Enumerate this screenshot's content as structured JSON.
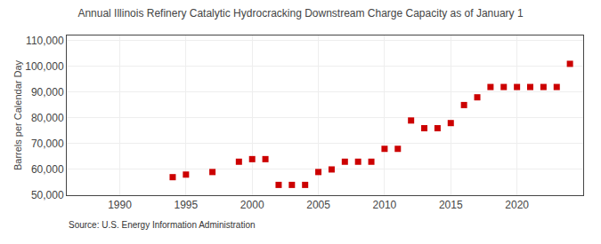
{
  "chart_data": {
    "type": "scatter",
    "title": "Annual Illinois Refinery Catalytic Hydrocracking Downstream Charge Capacity as of January 1",
    "ylabel": "Barrels per Calendar Day",
    "annotations": [
      "Source: U.S. Energy Information Administration"
    ],
    "x": [
      1994,
      1995,
      1997,
      1999,
      2000,
      2001,
      2002,
      2003,
      2004,
      2005,
      2006,
      2007,
      2008,
      2009,
      2010,
      2011,
      2012,
      2013,
      2014,
      2015,
      2016,
      2017,
      2018,
      2019,
      2020,
      2021,
      2022,
      2023,
      2024
    ],
    "values": [
      57000,
      58000,
      59000,
      63000,
      64000,
      64000,
      54000,
      54000,
      54000,
      59000,
      60000,
      63000,
      63000,
      63000,
      68000,
      68000,
      79000,
      76000,
      76000,
      78000,
      85000,
      88000,
      92000,
      92000,
      92000,
      92000,
      92000,
      92000,
      101000
    ],
    "color": "#cc0000",
    "marker": "square",
    "xlim": [
      1986,
      2025
    ],
    "ylim": [
      50000,
      112000
    ],
    "xticks": [
      1990,
      1995,
      2000,
      2005,
      2010,
      2015,
      2020
    ],
    "yticks": [
      {
        "value": 50000,
        "label": "50,000"
      },
      {
        "value": 60000,
        "label": "60,000"
      },
      {
        "value": 70000,
        "label": "70,000"
      },
      {
        "value": 80000,
        "label": "80,000"
      },
      {
        "value": 90000,
        "label": "90,000"
      },
      {
        "value": 100000,
        "label": "100,000"
      },
      {
        "value": 110000,
        "label": "110,000"
      }
    ],
    "grid": true
  }
}
